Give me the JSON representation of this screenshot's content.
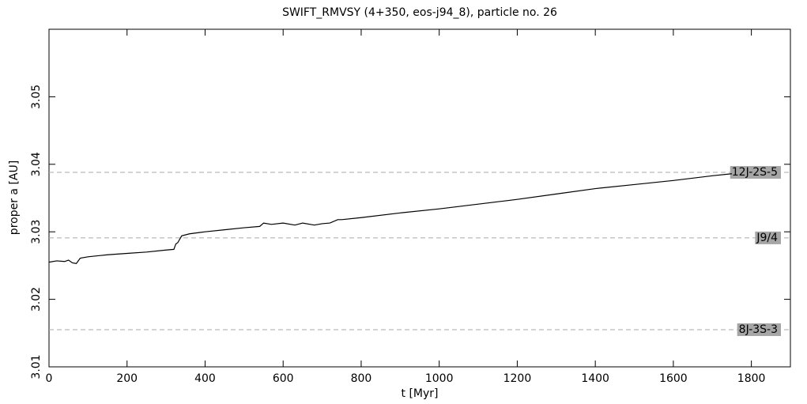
{
  "chart_data": {
    "type": "line",
    "title": "SWIFT_RMVSY (4+350, eos-j94_8), particle no. 26",
    "x_label": "t [Myr]",
    "y_label": "proper a [AU]",
    "x": [
      0,
      20,
      40,
      50,
      60,
      70,
      80,
      100,
      150,
      200,
      250,
      300,
      320,
      325,
      330,
      340,
      360,
      400,
      450,
      500,
      540,
      550,
      570,
      600,
      630,
      650,
      680,
      700,
      720,
      740,
      750,
      800,
      900,
      1000,
      1100,
      1200,
      1300,
      1400,
      1500,
      1600,
      1700,
      1750
    ],
    "series": [
      {
        "name": "proper a",
        "color": "#000000",
        "values": [
          3.0255,
          3.0257,
          3.0256,
          3.0258,
          3.0254,
          3.0253,
          3.0261,
          3.0263,
          3.0266,
          3.0268,
          3.027,
          3.0273,
          3.0274,
          3.0282,
          3.0284,
          3.0294,
          3.0297,
          3.03,
          3.0303,
          3.0306,
          3.0308,
          3.0313,
          3.0311,
          3.0313,
          3.031,
          3.0313,
          3.031,
          3.0312,
          3.0313,
          3.0318,
          3.0318,
          3.0321,
          3.0328,
          3.0334,
          3.0341,
          3.0348,
          3.0356,
          3.0364,
          3.037,
          3.0376,
          3.0383,
          3.0386
        ]
      }
    ],
    "resonances": [
      {
        "label": "12J-2S-5",
        "value": 3.0388
      },
      {
        "label": "J9/4",
        "value": 3.0291
      },
      {
        "label": "8J-3S-3",
        "value": 3.0155
      }
    ],
    "xlim": [
      0,
      1900
    ],
    "xticks": [
      0,
      200,
      400,
      600,
      800,
      1000,
      1200,
      1400,
      1600,
      1800
    ],
    "ylim": [
      3.01,
      3.06
    ],
    "yticks": [
      3.01,
      3.02,
      3.03,
      3.04,
      3.05
    ],
    "grid": false
  }
}
